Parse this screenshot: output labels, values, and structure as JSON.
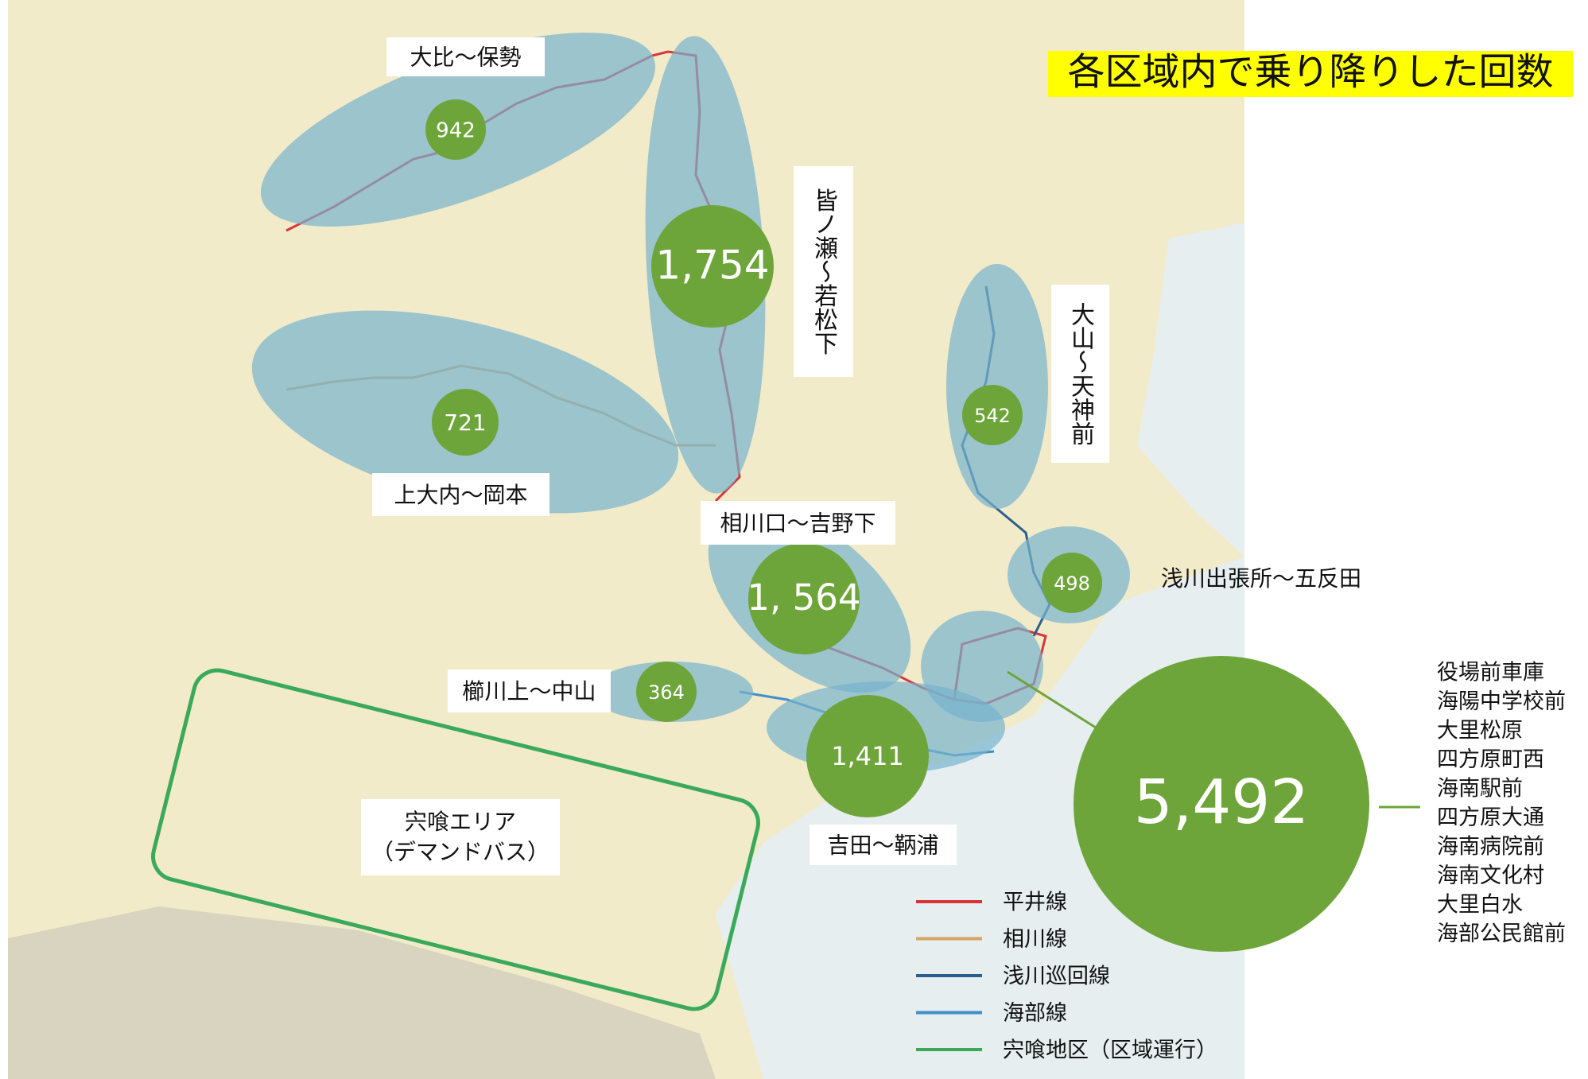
{
  "title": "各区域内で乗り降りした回数",
  "areas": [
    {
      "label": "大比～保勢",
      "count": "942"
    },
    {
      "label": "皆ノ瀬～若松下",
      "count": "1,754"
    },
    {
      "label": "上大内～岡本",
      "count": "721"
    },
    {
      "label": "大山～天神前",
      "count": "542"
    },
    {
      "label": "浅川出張所～五反田",
      "count": "498"
    },
    {
      "label": "相川口～吉野下",
      "count": "1, 564"
    },
    {
      "label": "櫛川上～中山",
      "count": "364"
    },
    {
      "label": "吉田～鞆浦",
      "count": "1,411"
    }
  ],
  "center_area": {
    "count": "5,492",
    "stops": [
      "役場前車庫",
      "海陽中学校前",
      "大里松原",
      "四方原町西",
      "海南駅前",
      "四方原大通",
      "海南病院前",
      "海南文化村",
      "大里白水",
      "海部公民館前"
    ]
  },
  "demand_area": {
    "lines": [
      "宍喰エリア",
      "（デマンドバス）"
    ]
  },
  "legend": [
    {
      "name": "平井線",
      "color": "#d8353a"
    },
    {
      "name": "相川線",
      "color": "#d8a466"
    },
    {
      "name": "浅川巡回線",
      "color": "#2d5f8e"
    },
    {
      "name": "海部線",
      "color": "#3f8fcb"
    },
    {
      "name": "宍喰地区（区域運行）",
      "color": "#3aaa5a"
    }
  ]
}
